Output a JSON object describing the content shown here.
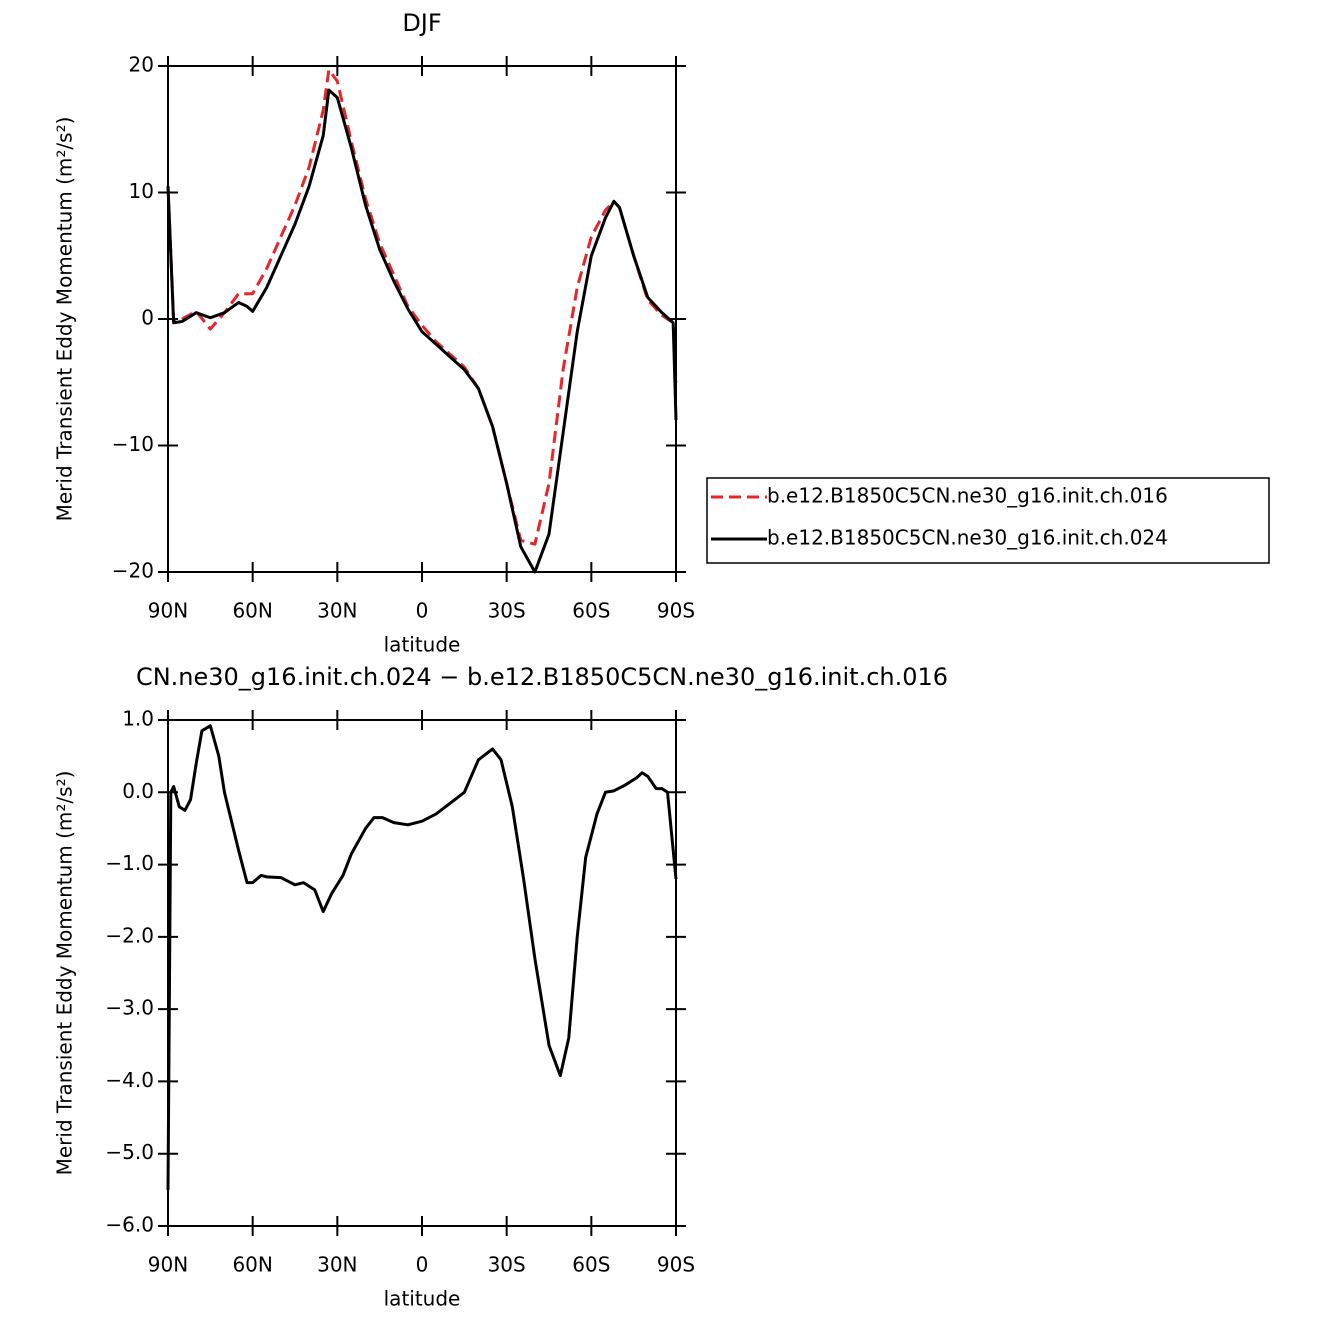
{
  "chart_data": [
    {
      "type": "line",
      "title": "DJF",
      "xlabel": "latitude",
      "ylabel": "Merid Transient Eddy Momentum (m²/s²)",
      "x": [
        90,
        88,
        85,
        80,
        75,
        70,
        65,
        62,
        60,
        55,
        50,
        45,
        40,
        35,
        33,
        30,
        25,
        20,
        15,
        10,
        5,
        0,
        -5,
        -10,
        -15,
        -20,
        -25,
        -30,
        -35,
        -40,
        -45,
        -50,
        -55,
        -60,
        -65,
        -68,
        -70,
        -75,
        -80,
        -85,
        -89,
        -90
      ],
      "series": [
        {
          "name": "b.e12.B1850C5CN.ne30_g16.init.ch.016",
          "color": "#e8262a",
          "line_style": "dashed",
          "values": [
            10.5,
            -0.2,
            0.0,
            0.6,
            -0.8,
            0.5,
            2.0,
            2.0,
            2.0,
            4.0,
            6.5,
            9.0,
            12.0,
            16.5,
            19.7,
            18.8,
            14.0,
            9.5,
            6.0,
            3.5,
            1.0,
            -0.5,
            -1.8,
            -2.8,
            -3.8,
            -5.5,
            -8.5,
            -13,
            -17.5,
            -17.8,
            -13,
            -4,
            2.5,
            6.5,
            8.6,
            9.3,
            8.8,
            5.0,
            1.5,
            0.3,
            -0.3,
            -5
          ]
        },
        {
          "name": "b.e12.B1850C5CN.ne30_g16.init.ch.024",
          "color": "#000000",
          "line_style": "solid",
          "values": [
            10.5,
            -0.3,
            -0.2,
            0.5,
            0.1,
            0.5,
            1.3,
            1.0,
            0.6,
            2.5,
            5.0,
            7.5,
            10.5,
            14.5,
            18.1,
            17.5,
            13.5,
            9.0,
            5.5,
            3.0,
            0.8,
            -1.0,
            -2.0,
            -3.0,
            -4.0,
            -5.5,
            -8.5,
            -13,
            -18,
            -20,
            -17,
            -9,
            -1,
            5.0,
            8.0,
            9.3,
            8.8,
            5.0,
            1.7,
            0.5,
            -0.3,
            -8
          ]
        }
      ],
      "xlim": [
        90,
        -90
      ],
      "xticks": [
        {
          "value": 90,
          "label": "90N"
        },
        {
          "value": 60,
          "label": "60N"
        },
        {
          "value": 30,
          "label": "30N"
        },
        0,
        {
          "value": -30,
          "label": "30S"
        },
        {
          "value": -60,
          "label": "60S"
        },
        {
          "value": -90,
          "label": "90S"
        }
      ],
      "ylim": [
        -20,
        20
      ],
      "yticks": [
        {
          "value": -20,
          "label": "−20"
        },
        {
          "value": -10,
          "label": "−10"
        },
        0,
        10,
        20
      ],
      "legend": "right"
    },
    {
      "type": "line",
      "title": "CN.ne30_g16.init.ch.024 − b.e12.B1850C5CN.ne30_g16.init.ch.016",
      "xlabel": "latitude",
      "ylabel": "Merid Transient Eddy Momentum (m²/s²)",
      "x": [
        90,
        89,
        88,
        86,
        84,
        82,
        80,
        78,
        75,
        72,
        70,
        65,
        62,
        60,
        57,
        55,
        50,
        45,
        42,
        38,
        35,
        32,
        28,
        25,
        20,
        17,
        14,
        10,
        5,
        0,
        -5,
        -10,
        -15,
        -20,
        -25,
        -28,
        -32,
        -36,
        -40,
        -45,
        -49,
        -52,
        -55,
        -58,
        -62,
        -65,
        -68,
        -72,
        -76,
        -78,
        -80,
        -83,
        -85,
        -87,
        -90
      ],
      "series": [
        {
          "color": "#000000",
          "line_style": "solid",
          "values": [
            -5.5,
            0.0,
            0.08,
            -0.2,
            -0.25,
            -0.1,
            0.4,
            0.85,
            0.92,
            0.5,
            0.0,
            -0.8,
            -1.25,
            -1.25,
            -1.15,
            -1.17,
            -1.18,
            -1.28,
            -1.25,
            -1.35,
            -1.65,
            -1.4,
            -1.15,
            -0.85,
            -0.5,
            -0.35,
            -0.35,
            -0.42,
            -0.45,
            -0.4,
            -0.3,
            -0.15,
            0.0,
            0.45,
            0.6,
            0.45,
            -0.2,
            -1.2,
            -2.3,
            -3.5,
            -3.92,
            -3.4,
            -2.0,
            -0.9,
            -0.3,
            0.0,
            0.02,
            0.1,
            0.2,
            0.27,
            0.22,
            0.05,
            0.05,
            0.0,
            -1.2
          ]
        }
      ],
      "xlim": [
        90,
        -90
      ],
      "xticks": [
        {
          "value": 90,
          "label": "90N"
        },
        {
          "value": 60,
          "label": "60N"
        },
        {
          "value": 30,
          "label": "30N"
        },
        0,
        {
          "value": -30,
          "label": "30S"
        },
        {
          "value": -60,
          "label": "60S"
        },
        {
          "value": -90,
          "label": "90S"
        }
      ],
      "ylim": [
        -6,
        1
      ],
      "yticks": [
        {
          "value": -6,
          "label": "−6.0"
        },
        {
          "value": -5,
          "label": "−5.0"
        },
        {
          "value": -4,
          "label": "−4.0"
        },
        {
          "value": -3,
          "label": "−3.0"
        },
        {
          "value": -2,
          "label": "−2.0"
        },
        {
          "value": -1,
          "label": "−1.0"
        },
        {
          "value": 0,
          "label": "0.0"
        },
        {
          "value": 1,
          "label": "1.0"
        }
      ]
    }
  ]
}
